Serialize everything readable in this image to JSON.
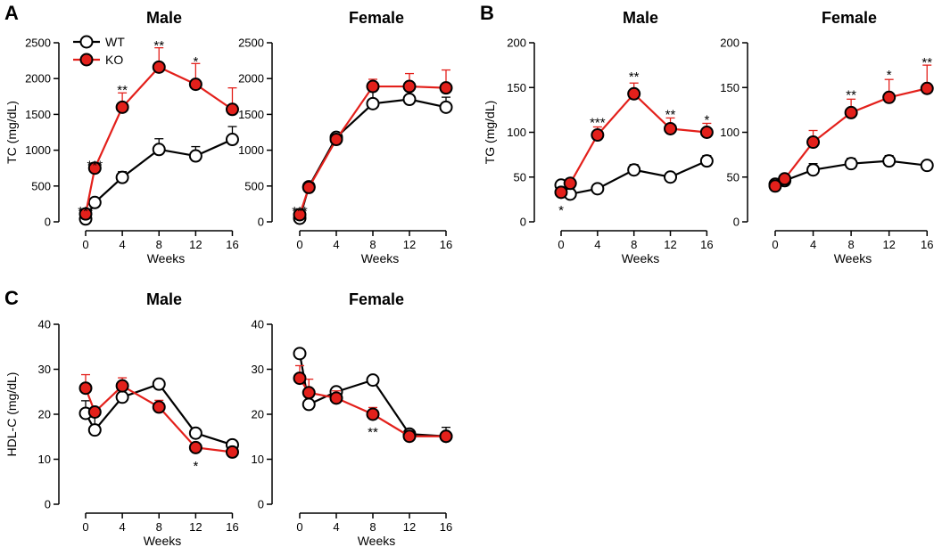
{
  "figure": {
    "panels": [
      {
        "letter": "A"
      },
      {
        "letter": "B"
      },
      {
        "letter": "C"
      }
    ]
  },
  "legend": {
    "entries": [
      {
        "name": "WT",
        "color": "#ffffff"
      },
      {
        "name": "KO",
        "color": "#e3201b"
      }
    ]
  },
  "chart_data": [
    {
      "type": "line",
      "panel": "A",
      "title": "Male",
      "xlabel": "Weeks",
      "ylabel": "TC (mg/dL)",
      "ylim": [
        0,
        2500
      ],
      "yticks": [
        0,
        500,
        1000,
        1500,
        2000,
        2500
      ],
      "xticks": [
        0,
        4,
        8,
        12,
        16
      ],
      "xlim": [
        -2,
        17
      ],
      "series": [
        {
          "name": "WT",
          "x": [
            0,
            1,
            4,
            8,
            12,
            16
          ],
          "values": [
            40,
            270,
            620,
            1010,
            920,
            1150
          ],
          "errors": [
            0,
            0,
            80,
            150,
            130,
            180
          ]
        },
        {
          "name": "KO",
          "x": [
            0,
            1,
            4,
            8,
            12,
            16
          ],
          "values": [
            110,
            750,
            1600,
            2160,
            1920,
            1570
          ],
          "errors": [
            0,
            60,
            200,
            270,
            290,
            300
          ]
        }
      ],
      "annotations": [
        {
          "text": "***",
          "x": 0,
          "y": 150
        },
        {
          "text": "***",
          "x": 1,
          "y": 790
        },
        {
          "text": "**",
          "x": 4,
          "y": 1840
        },
        {
          "text": "**",
          "x": 8,
          "y": 2460
        },
        {
          "text": "*",
          "x": 12,
          "y": 2240
        }
      ]
    },
    {
      "type": "line",
      "panel": "A",
      "title": "Female",
      "xlabel": "Weeks",
      "ylabel": "",
      "ylim": [
        0,
        2500
      ],
      "yticks": [
        0,
        500,
        1000,
        1500,
        2000,
        2500
      ],
      "xticks": [
        0,
        4,
        8,
        12,
        16
      ],
      "xlim": [
        -2,
        17
      ],
      "series": [
        {
          "name": "WT",
          "x": [
            0,
            1,
            4,
            8,
            12,
            16
          ],
          "values": [
            50,
            490,
            1180,
            1650,
            1710,
            1600
          ],
          "errors": [
            0,
            30,
            60,
            180,
            160,
            140
          ]
        },
        {
          "name": "KO",
          "x": [
            0,
            1,
            4,
            8,
            12,
            16
          ],
          "values": [
            100,
            480,
            1150,
            1890,
            1890,
            1870
          ],
          "errors": [
            0,
            30,
            50,
            100,
            180,
            250
          ]
        }
      ],
      "annotations": [
        {
          "text": "***",
          "x": 0,
          "y": 150
        }
      ]
    },
    {
      "type": "line",
      "panel": "B",
      "title": "Male",
      "xlabel": "Weeks",
      "ylabel": "TG (mg/dL)",
      "ylim": [
        0,
        200
      ],
      "yticks": [
        0,
        50,
        100,
        150,
        200
      ],
      "xticks": [
        0,
        4,
        8,
        12,
        16
      ],
      "xlim": [
        -2,
        17
      ],
      "series": [
        {
          "name": "WT",
          "x": [
            0,
            1,
            4,
            8,
            12,
            16
          ],
          "values": [
            41,
            31,
            37,
            58,
            50,
            68
          ],
          "errors": [
            0,
            6,
            0,
            6,
            0,
            6
          ]
        },
        {
          "name": "KO",
          "x": [
            0,
            1,
            4,
            8,
            12,
            16
          ],
          "values": [
            33,
            43,
            97,
            143,
            104,
            100
          ],
          "errors": [
            0,
            0,
            9,
            12,
            12,
            10
          ]
        }
      ],
      "annotations": [
        {
          "text": "*",
          "x": 0,
          "y": 13
        },
        {
          "text": "***",
          "x": 4,
          "y": 111
        },
        {
          "text": "**",
          "x": 8,
          "y": 162
        },
        {
          "text": "**",
          "x": 12,
          "y": 120
        },
        {
          "text": "*",
          "x": 16,
          "y": 114
        }
      ]
    },
    {
      "type": "line",
      "panel": "B",
      "title": "Female",
      "xlabel": "Weeks",
      "ylabel": "",
      "ylim": [
        0,
        200
      ],
      "yticks": [
        0,
        50,
        100,
        150,
        200
      ],
      "xticks": [
        0,
        4,
        8,
        12,
        16
      ],
      "xlim": [
        -2,
        17
      ],
      "series": [
        {
          "name": "WT",
          "x": [
            0,
            1,
            4,
            8,
            12,
            16
          ],
          "values": [
            42,
            46,
            58,
            65,
            68,
            63
          ],
          "errors": [
            0,
            5,
            7,
            6,
            6,
            0
          ]
        },
        {
          "name": "KO",
          "x": [
            0,
            1,
            4,
            8,
            12,
            16
          ],
          "values": [
            40,
            48,
            89,
            122,
            139,
            149
          ],
          "errors": [
            0,
            0,
            13,
            15,
            20,
            26
          ]
        }
      ],
      "annotations": [
        {
          "text": "**",
          "x": 8,
          "y": 142
        },
        {
          "text": "*",
          "x": 12,
          "y": 164
        },
        {
          "text": "**",
          "x": 16,
          "y": 178
        }
      ]
    },
    {
      "type": "line",
      "panel": "C",
      "title": "Male",
      "xlabel": "Weeks",
      "ylabel": "HDL-C (mg/dL)",
      "ylim": [
        0,
        40
      ],
      "yticks": [
        0,
        10,
        20,
        30,
        40
      ],
      "xticks": [
        0,
        4,
        8,
        12,
        16
      ],
      "xlim": [
        -2,
        17
      ],
      "series": [
        {
          "name": "WT",
          "x": [
            0,
            1,
            4,
            8,
            12,
            16
          ],
          "values": [
            20.2,
            16.5,
            23.8,
            26.7,
            15.8,
            13.2
          ],
          "errors": [
            2.8,
            3.2,
            2.4,
            0,
            0,
            0
          ]
        },
        {
          "name": "KO",
          "x": [
            0,
            1,
            4,
            8,
            12,
            16
          ],
          "values": [
            25.8,
            20.5,
            26.3,
            21.6,
            12.6,
            11.6
          ],
          "errors": [
            3.0,
            0,
            1.8,
            1.5,
            0,
            0
          ]
        }
      ],
      "annotations": [
        {
          "text": "*",
          "x": 12,
          "y": 8.5
        }
      ]
    },
    {
      "type": "line",
      "panel": "C",
      "title": "Female",
      "xlabel": "Weeks",
      "ylabel": "",
      "ylim": [
        0,
        40
      ],
      "yticks": [
        0,
        10,
        20,
        30,
        40
      ],
      "xticks": [
        0,
        4,
        8,
        12,
        16
      ],
      "xlim": [
        -2,
        17
      ],
      "series": [
        {
          "name": "WT",
          "x": [
            0,
            1,
            4,
            8,
            12,
            16
          ],
          "values": [
            33.5,
            22.2,
            25.0,
            27.6,
            15.6,
            15.1
          ],
          "errors": [
            0,
            2.2,
            0,
            0,
            0,
            2.0
          ]
        },
        {
          "name": "KO",
          "x": [
            0,
            1,
            4,
            8,
            12,
            16
          ],
          "values": [
            28.0,
            24.8,
            23.6,
            20.0,
            15.1,
            15.1
          ],
          "errors": [
            2.8,
            3.0,
            1.6,
            1.5,
            0,
            0
          ]
        }
      ],
      "annotations": [
        {
          "text": "**",
          "x": 8,
          "y": 16.0
        }
      ]
    }
  ]
}
